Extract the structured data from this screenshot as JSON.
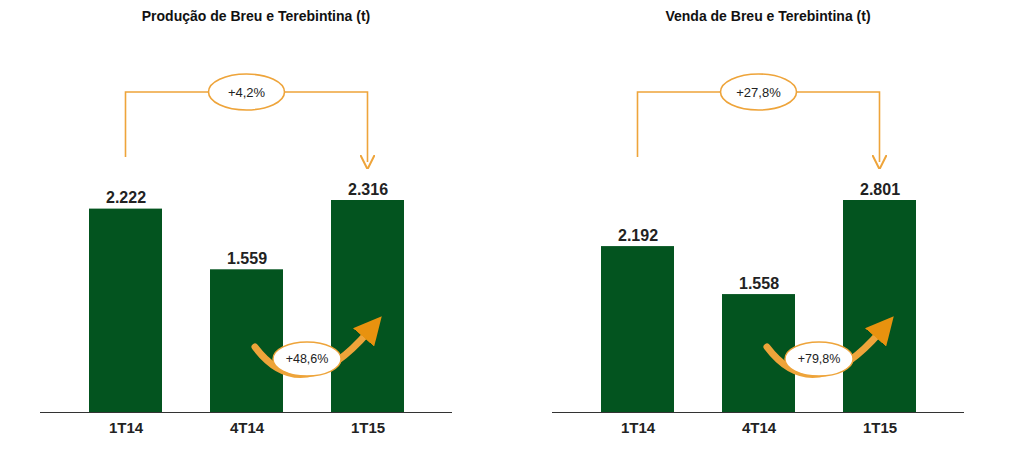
{
  "chart_data": [
    {
      "type": "bar",
      "title": "Produção de Breu e Terebintina (t)",
      "categories": [
        "1T14",
        "4T14",
        "1T15"
      ],
      "values": [
        2222,
        1559,
        2316
      ],
      "value_labels": [
        "2.222",
        "1.559",
        "2.316"
      ],
      "color": "#03541f",
      "data_labels": true,
      "tick_labels": "x",
      "annotations": [
        {
          "text": "+4,2%",
          "from": "1T14",
          "to": "1T15"
        },
        {
          "text": "+48,6%",
          "from": "4T14",
          "to": "1T15"
        }
      ]
    },
    {
      "type": "bar",
      "title": "Venda de Breu e Terebintina (t)",
      "categories": [
        "1T14",
        "4T14",
        "1T15"
      ],
      "values": [
        2192,
        1558,
        2801
      ],
      "value_labels": [
        "2.192",
        "1.558",
        "2.801"
      ],
      "color": "#03541f",
      "data_labels": true,
      "tick_labels": "x",
      "annotations": [
        {
          "text": "+27,8%",
          "from": "1T14",
          "to": "1T15"
        },
        {
          "text": "+79,8%",
          "from": "4T14",
          "to": "1T15"
        }
      ]
    }
  ]
}
